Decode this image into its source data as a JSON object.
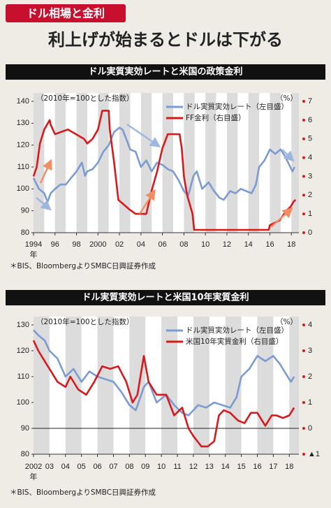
{
  "tab": "ドル相場と金利",
  "title": "利上げが始まるとドルは下がる",
  "chart_data": [
    {
      "type": "line",
      "header": "ドル実質実効レートと米国の政策金利",
      "index_note": "（2010年=100とした指数）",
      "y2_unit": "（%）",
      "x_unit": "年",
      "source": "＊BIS、BloombergよりSMBC日興証券作成",
      "xlim": [
        1994,
        2018.7
      ],
      "xticks": [
        1994,
        {
          "value": 1996,
          "label": "96"
        },
        {
          "value": 1998,
          "label": "98"
        },
        2000,
        {
          "value": 2002,
          "label": "02"
        },
        {
          "value": 2004,
          "label": "04"
        },
        {
          "value": 2006,
          "label": "06"
        },
        {
          "value": 2008,
          "label": "08"
        },
        {
          "value": 2010,
          "label": "10"
        },
        {
          "value": 2012,
          "label": "12"
        },
        {
          "value": 2014,
          "label": "14"
        },
        {
          "value": 2016,
          "label": "16"
        },
        {
          "value": 2018,
          "label": "18"
        }
      ],
      "ylim": [
        80,
        140
      ],
      "yticks": [
        80,
        90,
        100,
        110,
        120,
        130,
        140
      ],
      "y2lim": [
        0,
        7
      ],
      "y2ticks": [
        0,
        1,
        2,
        3,
        4,
        5,
        6,
        7
      ],
      "series": [
        {
          "name": "ドル実質実効レート（左目盛）",
          "color": "#7c9bd1",
          "axis": "y",
          "x": [
            1994.0,
            1994.5,
            1995.0,
            1995.3,
            1995.6,
            1996.0,
            1996.5,
            1997.0,
            1997.5,
            1998.0,
            1998.5,
            1998.8,
            1999.0,
            1999.5,
            2000.0,
            2000.5,
            2001.0,
            2001.5,
            2002.0,
            2002.3,
            2002.7,
            2003.0,
            2003.5,
            2004.0,
            2004.5,
            2005.0,
            2005.5,
            2006.0,
            2006.5,
            2007.0,
            2007.5,
            2008.0,
            2008.4,
            2008.9,
            2009.2,
            2009.7,
            2010.3,
            2010.8,
            2011.3,
            2011.7,
            2012.3,
            2012.8,
            2013.3,
            2013.8,
            2014.3,
            2014.7,
            2015.0,
            2015.5,
            2016.0,
            2016.5,
            2017.0,
            2017.4,
            2017.8,
            2018.1,
            2018.3
          ],
          "values": [
            105,
            100,
            98,
            94,
            98,
            100,
            102,
            102,
            105,
            108,
            112,
            106,
            108,
            109,
            112,
            117,
            120,
            126,
            128,
            127,
            122,
            118,
            117,
            110,
            113,
            108,
            112,
            111,
            109,
            108,
            104,
            99,
            97,
            106,
            108,
            100,
            103,
            99,
            96,
            95,
            99,
            98,
            100,
            99,
            98,
            102,
            110,
            113,
            118,
            116,
            118,
            115,
            111,
            108,
            110
          ]
        },
        {
          "name": "FF金利（右目盛）",
          "color": "#d7191c",
          "axis": "y2",
          "x": [
            1994.0,
            1994.3,
            1994.6,
            1995.0,
            1995.5,
            1995.6,
            1996.0,
            1997.2,
            1998.7,
            1999.0,
            1999.5,
            2000.0,
            2000.4,
            2001.0,
            2001.1,
            2001.5,
            2001.9,
            2002.9,
            2003.5,
            2004.5,
            2005.0,
            2005.5,
            2006.0,
            2006.5,
            2007.6,
            2007.8,
            2008.0,
            2008.3,
            2008.8,
            2008.95,
            2015.9,
            2016.0,
            2016.9,
            2017.2,
            2017.5,
            2017.95,
            2018.2,
            2018.4
          ],
          "values": [
            3,
            3.5,
            4.75,
            5.5,
            6.0,
            5.75,
            5.25,
            5.5,
            5.0,
            4.75,
            5.0,
            5.5,
            6.5,
            6.5,
            5.5,
            3.75,
            1.75,
            1.25,
            1.0,
            1.0,
            2.25,
            3.25,
            4.5,
            5.25,
            5.25,
            4.5,
            3.0,
            2.0,
            1.0,
            0.15,
            0.15,
            0.4,
            0.65,
            0.9,
            1.15,
            1.4,
            1.65,
            1.75
          ]
        }
      ]
    },
    {
      "type": "line",
      "header": "ドル実質実効レートと米国10年実質金利",
      "index_note": "（2010年=100とした指数）",
      "y2_unit": "（%）",
      "x_unit": "年",
      "source": "＊BIS、BloombergよりSMBC日興証券作成",
      "xlim": [
        2002,
        2018.6
      ],
      "xticks": [
        2002,
        {
          "value": 2003,
          "label": "03"
        },
        {
          "value": 2004,
          "label": "04"
        },
        {
          "value": 2005,
          "label": "05"
        },
        {
          "value": 2006,
          "label": "06"
        },
        {
          "value": 2007,
          "label": "07"
        },
        {
          "value": 2008,
          "label": "08"
        },
        {
          "value": 2009,
          "label": "09"
        },
        {
          "value": 2010,
          "label": "10"
        },
        {
          "value": 2011,
          "label": "11"
        },
        {
          "value": 2012,
          "label": "12"
        },
        {
          "value": 2013,
          "label": "13"
        },
        {
          "value": 2014,
          "label": "14"
        },
        {
          "value": 2015,
          "label": "15"
        },
        {
          "value": 2016,
          "label": "16"
        },
        {
          "value": 2017,
          "label": "17"
        },
        {
          "value": 2018,
          "label": "18"
        }
      ],
      "ylim": [
        80,
        130
      ],
      "yticks": [
        80,
        90,
        100,
        110,
        120,
        130
      ],
      "y2lim": [
        -1,
        4
      ],
      "y2ticks": [
        {
          "value": -1,
          "label": "▲1"
        },
        0,
        1,
        2,
        3,
        4
      ],
      "hline_y2": 0,
      "series": [
        {
          "name": "ドル実質実効レート（左目盛）",
          "color": "#7c9bd1",
          "axis": "y",
          "x": [
            2002.0,
            2002.3,
            2002.7,
            2003.0,
            2003.5,
            2004.0,
            2004.5,
            2005.0,
            2005.5,
            2006.0,
            2006.5,
            2007.0,
            2007.5,
            2008.0,
            2008.4,
            2008.9,
            2009.2,
            2009.7,
            2010.3,
            2010.8,
            2011.3,
            2011.7,
            2012.3,
            2012.8,
            2013.3,
            2013.8,
            2014.3,
            2014.7,
            2015.0,
            2015.5,
            2016.0,
            2016.5,
            2017.0,
            2017.4,
            2017.8,
            2018.1,
            2018.3
          ],
          "values": [
            128,
            126,
            124,
            120,
            117,
            110,
            113,
            108,
            112,
            110,
            109,
            108,
            104,
            99,
            97,
            106,
            108,
            100,
            103,
            99,
            96,
            95,
            99,
            98,
            100,
            99,
            98,
            102,
            110,
            113,
            118,
            116,
            118,
            115,
            111,
            108,
            110
          ]
        },
        {
          "name": "米国10年実質金利（右目盛）",
          "color": "#d7191c",
          "axis": "y2",
          "x": [
            2002.0,
            2002.3,
            2002.7,
            2003.0,
            2003.5,
            2004.0,
            2004.3,
            2004.8,
            2005.3,
            2005.8,
            2006.3,
            2006.8,
            2007.3,
            2007.8,
            2008.2,
            2008.5,
            2008.9,
            2009.2,
            2009.7,
            2010.3,
            2010.8,
            2011.3,
            2011.7,
            2012.0,
            2012.5,
            2012.9,
            2013.3,
            2013.6,
            2013.9,
            2014.3,
            2014.8,
            2015.2,
            2015.6,
            2016.0,
            2016.5,
            2016.9,
            2017.2,
            2017.6,
            2018.0,
            2018.3
          ],
          "values": [
            3.4,
            3.0,
            2.6,
            2.3,
            1.8,
            1.6,
            2.0,
            1.5,
            1.3,
            1.8,
            2.4,
            2.3,
            2.4,
            1.8,
            1.0,
            1.3,
            2.8,
            1.8,
            1.3,
            1.3,
            0.5,
            0.8,
            0.0,
            -0.3,
            -0.7,
            -0.7,
            -0.5,
            0.5,
            0.7,
            0.6,
            0.3,
            0.2,
            0.6,
            0.6,
            0.1,
            0.5,
            0.5,
            0.4,
            0.5,
            0.8
          ]
        }
      ]
    }
  ]
}
